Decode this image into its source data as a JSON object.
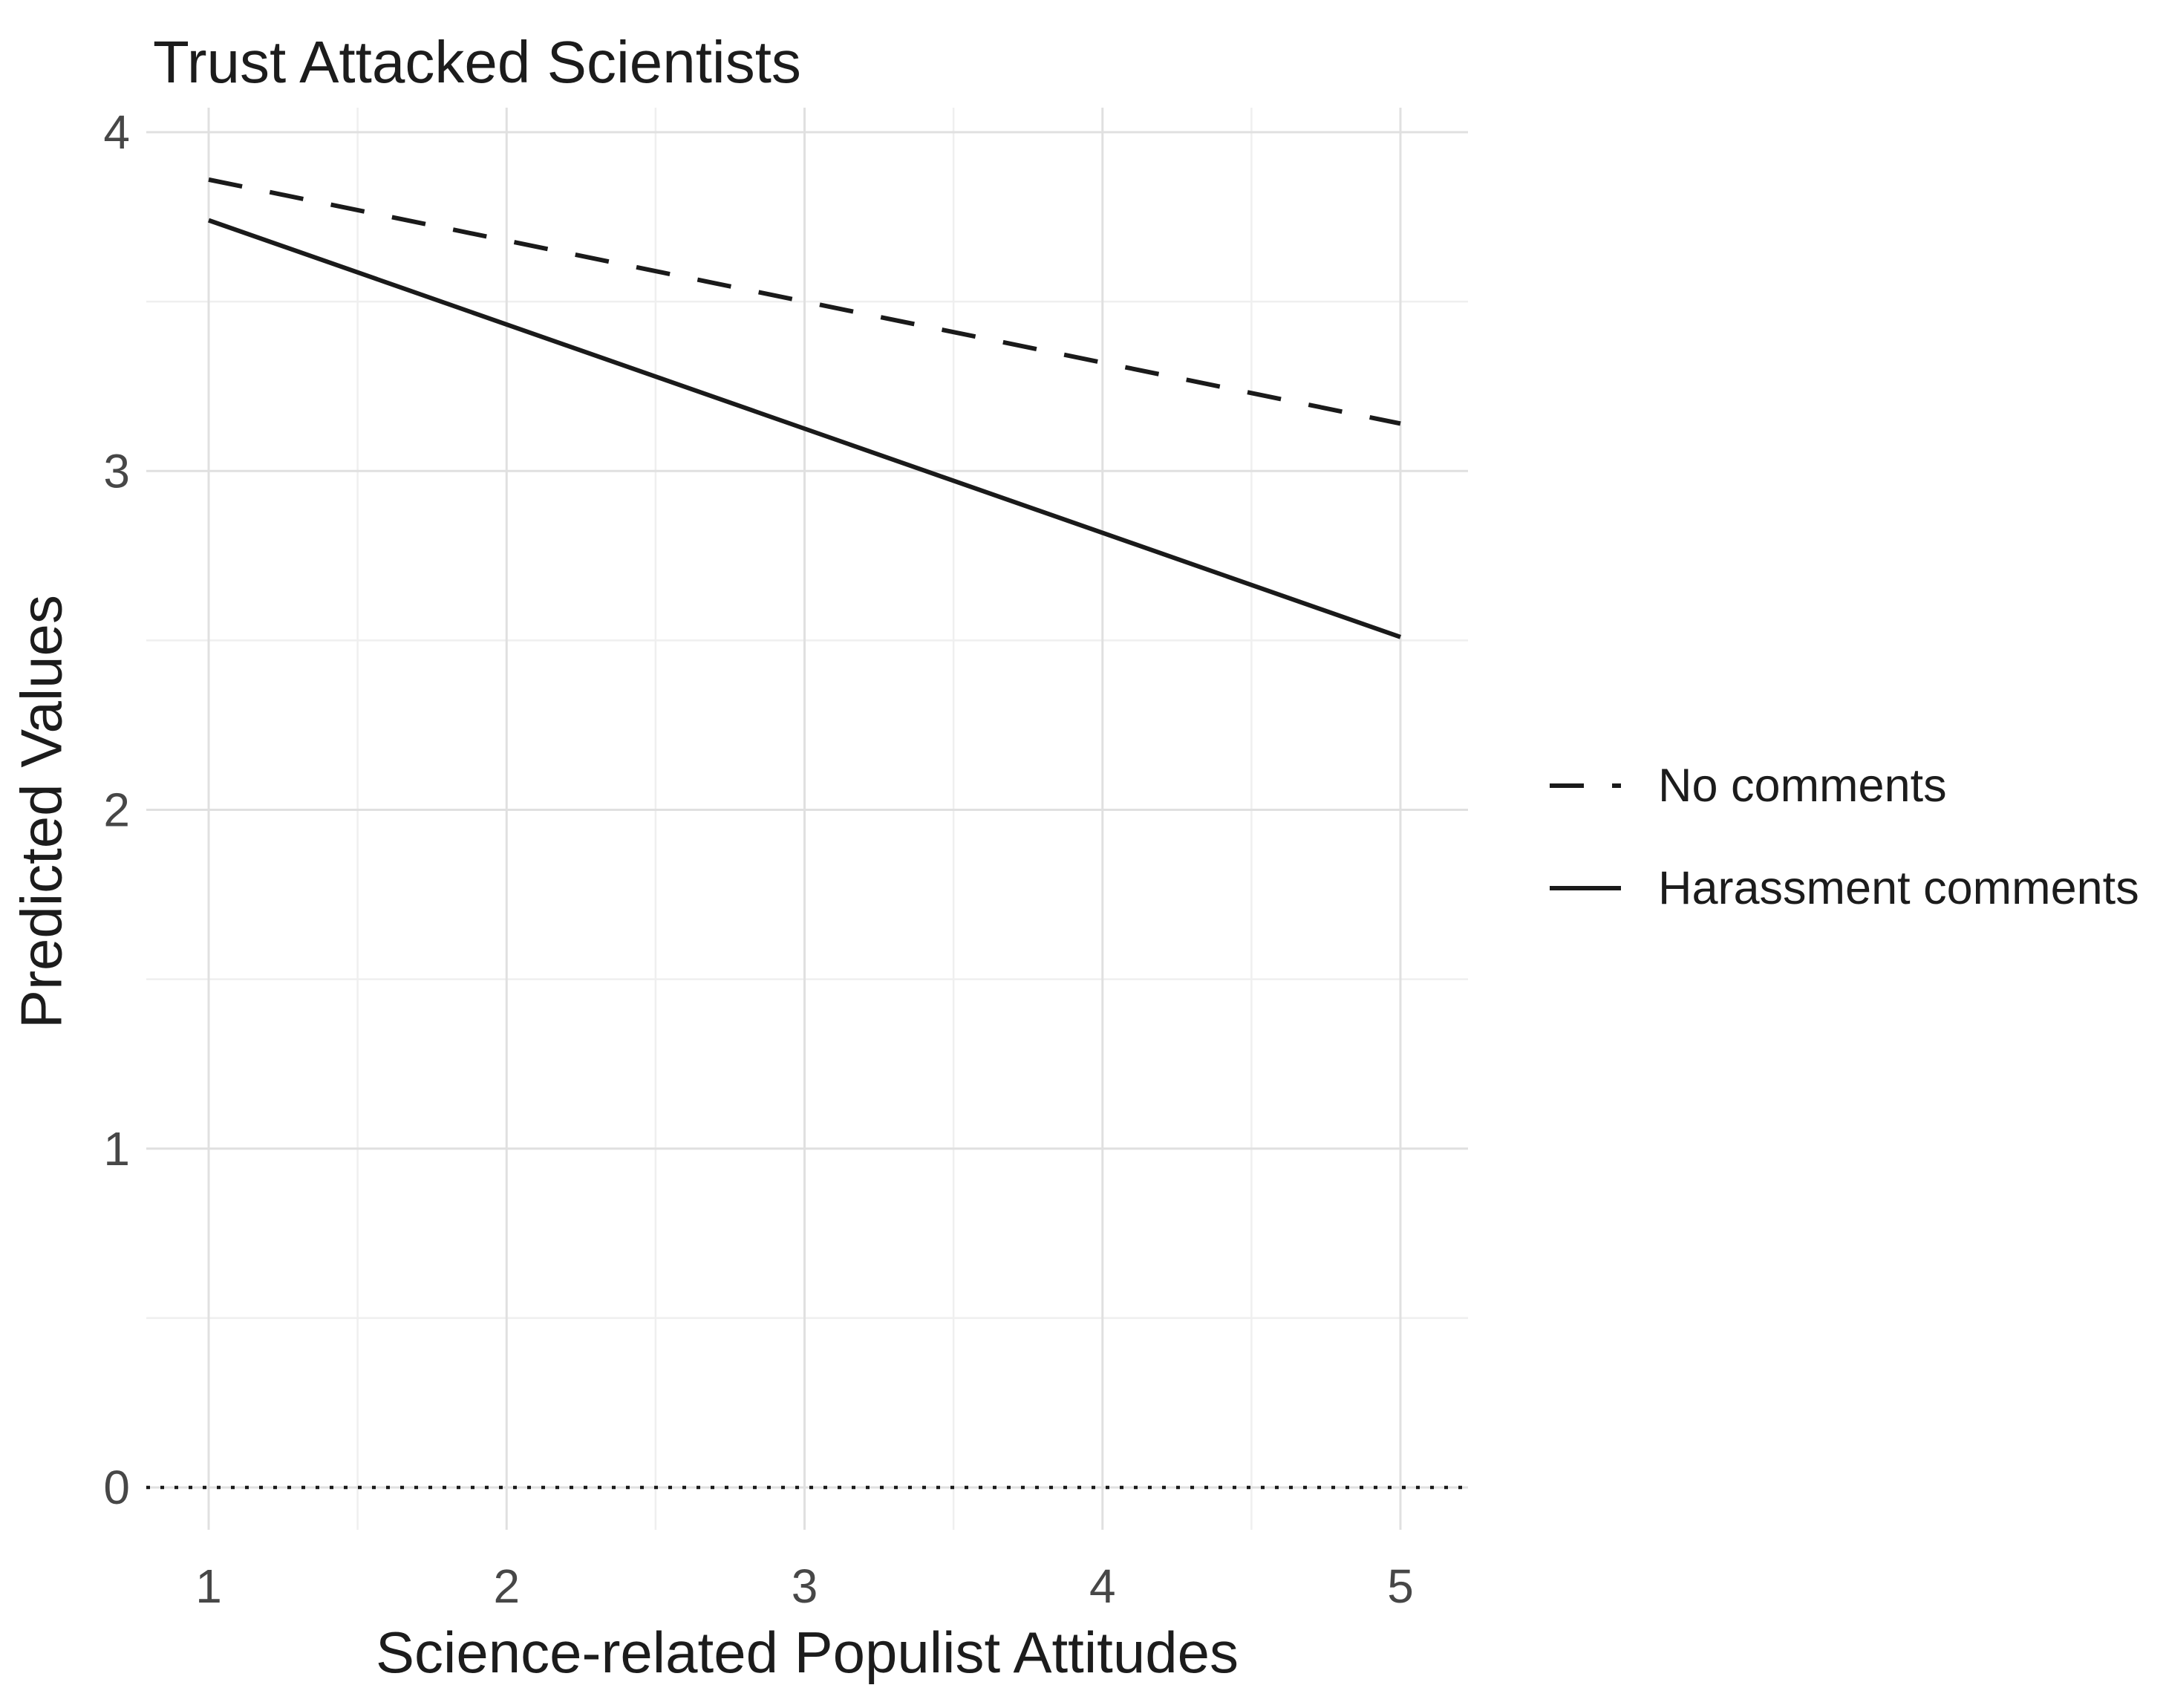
{
  "chart_data": {
    "type": "line",
    "title": "Trust Attacked Scientists",
    "xlabel": "Science-related Populist Attitudes",
    "ylabel": "Predicted Values",
    "x_ticks": [
      1,
      2,
      3,
      4,
      5
    ],
    "y_ticks": [
      0,
      1,
      2,
      3,
      4
    ],
    "x_minor": [
      1.5,
      2.5,
      3.5,
      4.5
    ],
    "y_minor": [
      0.5,
      1.5,
      2.5,
      3.5
    ],
    "xlim": [
      0.8,
      5.23
    ],
    "ylim": [
      -0.13,
      4.07
    ],
    "grid": true,
    "legend_position": "right",
    "ref_line": {
      "y": 0,
      "style": "dotted"
    },
    "series": [
      {
        "name": "No comments",
        "style": "dashed",
        "points": [
          [
            1,
            3.86
          ],
          [
            5,
            3.14
          ]
        ]
      },
      {
        "name": "Harassment comments",
        "style": "solid",
        "points": [
          [
            1,
            3.74
          ],
          [
            5,
            2.51
          ]
        ]
      }
    ]
  },
  "colors": {
    "line": "#1a1a1a",
    "grid_major": "#e0e0e0",
    "grid_minor": "#efefef",
    "text_tick": "#474747",
    "text_dark": "#1c1c1c",
    "background": "#ffffff"
  }
}
